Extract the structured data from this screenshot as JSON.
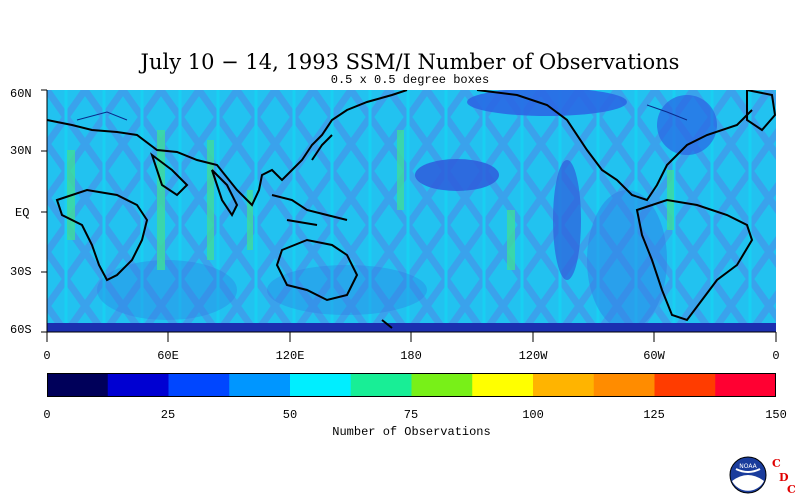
{
  "title": "July 10 − 14, 1993 SSM/I Number of Observations",
  "subtitle": "0.5 x 0.5 degree boxes",
  "map": {
    "latitude_labels": [
      "60N",
      "30N",
      "EQ",
      "30S",
      "60S"
    ],
    "longitude_labels": [
      "0",
      "60E",
      "120E",
      "180",
      "120W",
      "60W",
      "0"
    ]
  },
  "colorbar": {
    "title": "Number of Observations",
    "tick_labels": [
      "0",
      "25",
      "50",
      "75",
      "100",
      "125",
      "150"
    ],
    "colors": [
      "#00005a",
      "#0000d2",
      "#0046ff",
      "#0096ff",
      "#00eeff",
      "#18ee96",
      "#78f018",
      "#ffff00",
      "#ffb400",
      "#ff8c00",
      "#ff3c00",
      "#ff0032"
    ]
  },
  "logo": {
    "text": "NOAA",
    "letters": [
      "C",
      "D",
      "C"
    ]
  }
}
